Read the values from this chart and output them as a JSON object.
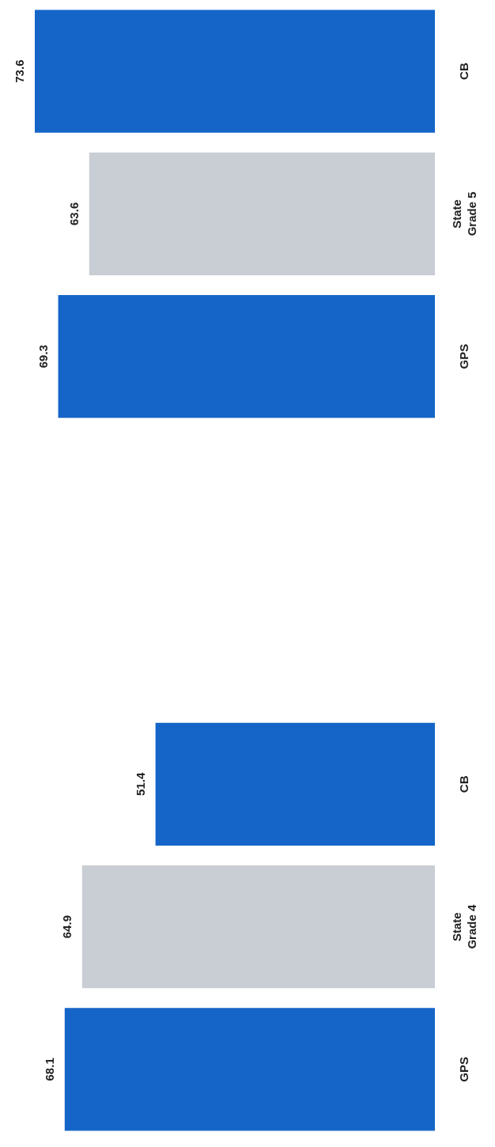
{
  "chart_data": {
    "type": "bar",
    "orientation": "horizontal",
    "categories": [
      "CB",
      "State Grade 5",
      "GPS",
      null,
      null,
      "CB",
      "State Grade 4",
      "GPS"
    ],
    "values": [
      73.6,
      63.6,
      69.3,
      null,
      null,
      51.4,
      64.9,
      68.1
    ],
    "colors": [
      "#1565c8",
      "#c9cdd4",
      "#1565c8",
      "#1565c8",
      "#1565c8",
      "#1565c8",
      "#c9cdd4",
      "#1565c8"
    ],
    "data_labels": true,
    "legend": false
  }
}
